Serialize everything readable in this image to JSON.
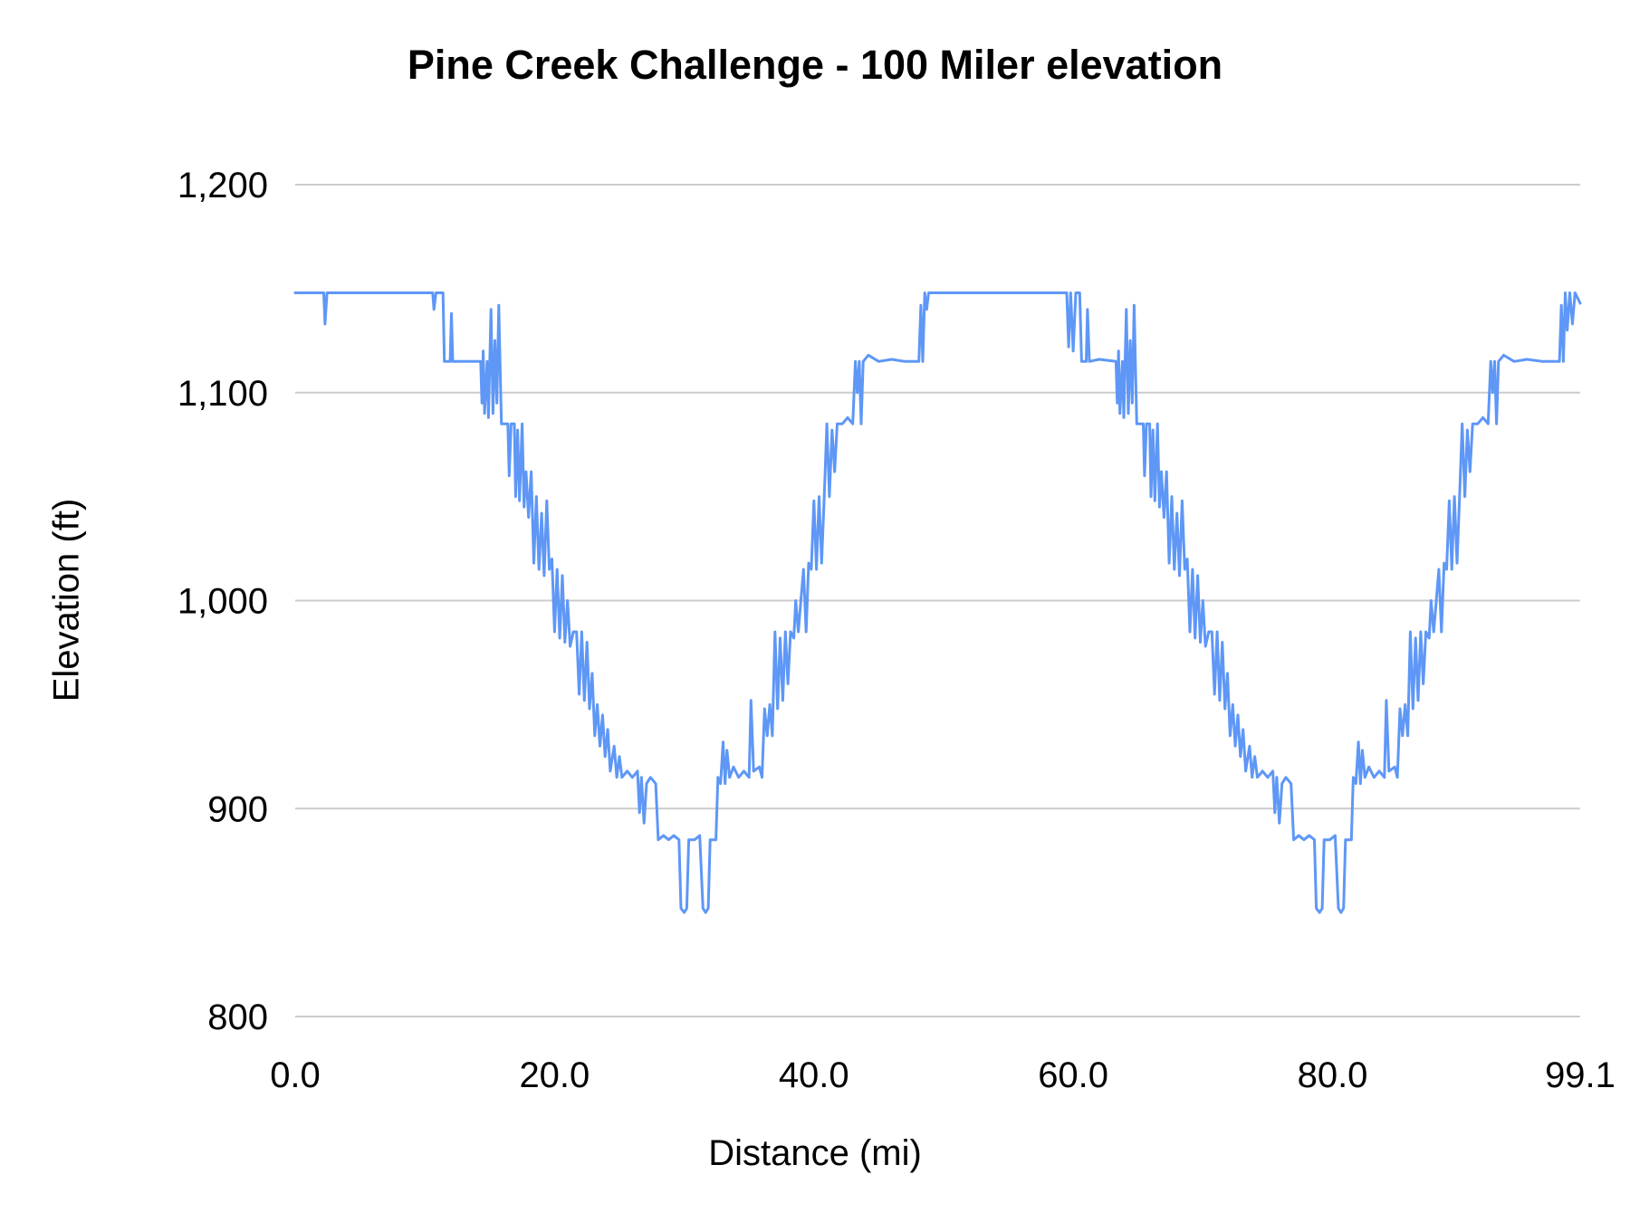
{
  "page": {
    "background": "#ffffff"
  },
  "chart_data": {
    "type": "line",
    "title": "Pine Creek Challenge - 100 Miler elevation",
    "xlabel": "Distance (mi)",
    "ylabel": "Elevation (ft)",
    "xlim": [
      0,
      99.1
    ],
    "ylim": [
      800,
      1200
    ],
    "grid": "horizontal",
    "legend": "none",
    "gridline_color": "#cccccc",
    "text_color": "#000000",
    "x_ticks": [
      {
        "v": 0,
        "label": "0.0"
      },
      {
        "v": 20,
        "label": "20.0"
      },
      {
        "v": 40,
        "label": "40.0"
      },
      {
        "v": 60,
        "label": "60.0"
      },
      {
        "v": 80,
        "label": "80.0"
      },
      {
        "v": 99.1,
        "label": "99.1"
      }
    ],
    "y_ticks": [
      {
        "v": 800,
        "label": "800"
      },
      {
        "v": 900,
        "label": "900"
      },
      {
        "v": 1000,
        "label": "1,000"
      },
      {
        "v": 1100,
        "label": "1,100"
      },
      {
        "v": 1200,
        "label": "1,200"
      }
    ],
    "series": [
      {
        "name": "Elevation",
        "color": "#5e97f6",
        "points": [
          [
            0,
            1148
          ],
          [
            2.2,
            1148
          ],
          [
            2.3,
            1133
          ],
          [
            2.45,
            1148
          ],
          [
            10.6,
            1148
          ],
          [
            10.7,
            1140
          ],
          [
            10.85,
            1148
          ],
          [
            11.4,
            1148
          ],
          [
            11.5,
            1115
          ],
          [
            11.95,
            1115
          ],
          [
            12.05,
            1138
          ],
          [
            12.15,
            1115
          ],
          [
            14.3,
            1115
          ],
          [
            14.4,
            1095
          ],
          [
            14.5,
            1120
          ],
          [
            14.6,
            1090
          ],
          [
            14.8,
            1115
          ],
          [
            14.9,
            1088
          ],
          [
            15.1,
            1140
          ],
          [
            15.25,
            1090
          ],
          [
            15.4,
            1125
          ],
          [
            15.55,
            1095
          ],
          [
            15.7,
            1142
          ],
          [
            15.9,
            1085
          ],
          [
            16.4,
            1085
          ],
          [
            16.5,
            1060
          ],
          [
            16.65,
            1085
          ],
          [
            16.9,
            1085
          ],
          [
            17,
            1050
          ],
          [
            17.15,
            1082
          ],
          [
            17.3,
            1048
          ],
          [
            17.5,
            1085
          ],
          [
            17.65,
            1045
          ],
          [
            17.8,
            1062
          ],
          [
            18,
            1040
          ],
          [
            18.2,
            1062
          ],
          [
            18.4,
            1018
          ],
          [
            18.6,
            1050
          ],
          [
            18.8,
            1015
          ],
          [
            19,
            1042
          ],
          [
            19.2,
            1012
          ],
          [
            19.4,
            1048
          ],
          [
            19.6,
            1015
          ],
          [
            19.8,
            1020
          ],
          [
            20,
            985
          ],
          [
            20.2,
            1015
          ],
          [
            20.4,
            982
          ],
          [
            20.6,
            1012
          ],
          [
            20.8,
            980
          ],
          [
            21,
            1000
          ],
          [
            21.2,
            978
          ],
          [
            21.45,
            985
          ],
          [
            21.7,
            985
          ],
          [
            21.9,
            955
          ],
          [
            22.1,
            985
          ],
          [
            22.3,
            952
          ],
          [
            22.5,
            980
          ],
          [
            22.7,
            948
          ],
          [
            22.9,
            965
          ],
          [
            23.1,
            935
          ],
          [
            23.3,
            950
          ],
          [
            23.5,
            930
          ],
          [
            23.7,
            945
          ],
          [
            23.9,
            925
          ],
          [
            24.1,
            938
          ],
          [
            24.3,
            918
          ],
          [
            24.6,
            930
          ],
          [
            24.8,
            915
          ],
          [
            25,
            925
          ],
          [
            25.2,
            915
          ],
          [
            25.6,
            918
          ],
          [
            26,
            915
          ],
          [
            26.4,
            918
          ],
          [
            26.55,
            898
          ],
          [
            26.7,
            915
          ],
          [
            26.9,
            893
          ],
          [
            27.1,
            912
          ],
          [
            27.4,
            915
          ],
          [
            27.8,
            912
          ],
          [
            28,
            885
          ],
          [
            28.4,
            887
          ],
          [
            28.8,
            885
          ],
          [
            29.2,
            887
          ],
          [
            29.6,
            885
          ],
          [
            29.75,
            852
          ],
          [
            30,
            850
          ],
          [
            30.2,
            852
          ],
          [
            30.35,
            885
          ],
          [
            30.8,
            885
          ],
          [
            31.2,
            887
          ],
          [
            31.45,
            852
          ],
          [
            31.65,
            850
          ],
          [
            31.85,
            852
          ],
          [
            32,
            885
          ],
          [
            32.45,
            885
          ],
          [
            32.6,
            915
          ],
          [
            32.8,
            912
          ],
          [
            33,
            932
          ],
          [
            33.15,
            912
          ],
          [
            33.3,
            928
          ],
          [
            33.5,
            915
          ],
          [
            33.8,
            920
          ],
          [
            34.2,
            915
          ],
          [
            34.6,
            918
          ],
          [
            35,
            915
          ],
          [
            35.15,
            952
          ],
          [
            35.35,
            918
          ],
          [
            35.8,
            920
          ],
          [
            36,
            915
          ],
          [
            36.2,
            948
          ],
          [
            36.4,
            935
          ],
          [
            36.6,
            950
          ],
          [
            36.8,
            935
          ],
          [
            37,
            985
          ],
          [
            37.2,
            948
          ],
          [
            37.4,
            982
          ],
          [
            37.6,
            952
          ],
          [
            37.8,
            985
          ],
          [
            38,
            960
          ],
          [
            38.2,
            985
          ],
          [
            38.45,
            982
          ],
          [
            38.6,
            1000
          ],
          [
            38.8,
            985
          ],
          [
            39,
            1000
          ],
          [
            39.2,
            1015
          ],
          [
            39.4,
            985
          ],
          [
            39.6,
            1018
          ],
          [
            39.8,
            1015
          ],
          [
            40,
            1048
          ],
          [
            40.2,
            1015
          ],
          [
            40.4,
            1050
          ],
          [
            40.6,
            1018
          ],
          [
            40.8,
            1050
          ],
          [
            41,
            1085
          ],
          [
            41.2,
            1050
          ],
          [
            41.4,
            1082
          ],
          [
            41.6,
            1062
          ],
          [
            41.8,
            1085
          ],
          [
            42.2,
            1085
          ],
          [
            42.6,
            1088
          ],
          [
            43,
            1085
          ],
          [
            43.2,
            1115
          ],
          [
            43.35,
            1100
          ],
          [
            43.5,
            1115
          ],
          [
            43.65,
            1085
          ],
          [
            43.8,
            1115
          ],
          [
            44.2,
            1118
          ],
          [
            45,
            1115
          ],
          [
            46,
            1116
          ],
          [
            47,
            1115
          ],
          [
            48.1,
            1115
          ],
          [
            48.25,
            1142
          ],
          [
            48.4,
            1115
          ],
          [
            48.55,
            1148
          ],
          [
            48.7,
            1140
          ],
          [
            48.85,
            1148
          ],
          [
            49.4,
            1148
          ],
          [
            55,
            1148
          ],
          [
            59.5,
            1148
          ],
          [
            59.65,
            1122
          ],
          [
            59.8,
            1148
          ],
          [
            60,
            1120
          ],
          [
            60.2,
            1148
          ],
          [
            60.5,
            1148
          ],
          [
            60.65,
            1115
          ],
          [
            61,
            1115
          ],
          [
            61.1,
            1140
          ],
          [
            61.25,
            1115
          ],
          [
            62,
            1116
          ],
          [
            63.3,
            1115
          ],
          [
            63.4,
            1095
          ],
          [
            63.5,
            1120
          ],
          [
            63.6,
            1090
          ],
          [
            63.8,
            1115
          ],
          [
            63.9,
            1088
          ],
          [
            64.1,
            1140
          ],
          [
            64.25,
            1090
          ],
          [
            64.4,
            1125
          ],
          [
            64.55,
            1095
          ],
          [
            64.7,
            1142
          ],
          [
            64.9,
            1085
          ],
          [
            65.4,
            1085
          ],
          [
            65.5,
            1060
          ],
          [
            65.65,
            1085
          ],
          [
            65.9,
            1085
          ],
          [
            66,
            1050
          ],
          [
            66.15,
            1082
          ],
          [
            66.3,
            1048
          ],
          [
            66.5,
            1085
          ],
          [
            66.65,
            1045
          ],
          [
            66.8,
            1062
          ],
          [
            67,
            1040
          ],
          [
            67.2,
            1062
          ],
          [
            67.4,
            1018
          ],
          [
            67.6,
            1050
          ],
          [
            67.8,
            1015
          ],
          [
            68,
            1042
          ],
          [
            68.2,
            1012
          ],
          [
            68.4,
            1048
          ],
          [
            68.6,
            1015
          ],
          [
            68.8,
            1020
          ],
          [
            69,
            985
          ],
          [
            69.2,
            1015
          ],
          [
            69.4,
            982
          ],
          [
            69.6,
            1012
          ],
          [
            69.8,
            980
          ],
          [
            70,
            1000
          ],
          [
            70.2,
            978
          ],
          [
            70.45,
            985
          ],
          [
            70.7,
            985
          ],
          [
            70.9,
            955
          ],
          [
            71.1,
            985
          ],
          [
            71.3,
            952
          ],
          [
            71.5,
            980
          ],
          [
            71.7,
            948
          ],
          [
            71.9,
            965
          ],
          [
            72.1,
            935
          ],
          [
            72.3,
            950
          ],
          [
            72.5,
            930
          ],
          [
            72.7,
            945
          ],
          [
            72.9,
            925
          ],
          [
            73.1,
            938
          ],
          [
            73.3,
            918
          ],
          [
            73.6,
            930
          ],
          [
            73.8,
            915
          ],
          [
            74,
            925
          ],
          [
            74.2,
            915
          ],
          [
            74.6,
            918
          ],
          [
            75,
            915
          ],
          [
            75.4,
            918
          ],
          [
            75.55,
            898
          ],
          [
            75.7,
            915
          ],
          [
            75.9,
            893
          ],
          [
            76.1,
            912
          ],
          [
            76.4,
            915
          ],
          [
            76.8,
            912
          ],
          [
            77,
            885
          ],
          [
            77.4,
            887
          ],
          [
            77.8,
            885
          ],
          [
            78.2,
            887
          ],
          [
            78.6,
            885
          ],
          [
            78.75,
            852
          ],
          [
            79,
            850
          ],
          [
            79.2,
            852
          ],
          [
            79.35,
            885
          ],
          [
            79.8,
            885
          ],
          [
            80.2,
            887
          ],
          [
            80.45,
            852
          ],
          [
            80.65,
            850
          ],
          [
            80.85,
            852
          ],
          [
            81,
            885
          ],
          [
            81.45,
            885
          ],
          [
            81.6,
            915
          ],
          [
            81.8,
            912
          ],
          [
            82,
            932
          ],
          [
            82.15,
            912
          ],
          [
            82.3,
            928
          ],
          [
            82.5,
            915
          ],
          [
            82.8,
            920
          ],
          [
            83.2,
            915
          ],
          [
            83.6,
            918
          ],
          [
            84,
            915
          ],
          [
            84.15,
            952
          ],
          [
            84.35,
            918
          ],
          [
            84.8,
            920
          ],
          [
            85,
            915
          ],
          [
            85.2,
            948
          ],
          [
            85.4,
            935
          ],
          [
            85.6,
            950
          ],
          [
            85.8,
            935
          ],
          [
            86,
            985
          ],
          [
            86.2,
            948
          ],
          [
            86.4,
            982
          ],
          [
            86.6,
            952
          ],
          [
            86.8,
            985
          ],
          [
            87,
            960
          ],
          [
            87.2,
            985
          ],
          [
            87.45,
            982
          ],
          [
            87.6,
            1000
          ],
          [
            87.8,
            985
          ],
          [
            88,
            1000
          ],
          [
            88.2,
            1015
          ],
          [
            88.4,
            985
          ],
          [
            88.6,
            1018
          ],
          [
            88.8,
            1015
          ],
          [
            89,
            1048
          ],
          [
            89.2,
            1015
          ],
          [
            89.4,
            1050
          ],
          [
            89.6,
            1018
          ],
          [
            89.8,
            1050
          ],
          [
            90,
            1085
          ],
          [
            90.2,
            1050
          ],
          [
            90.4,
            1082
          ],
          [
            90.6,
            1062
          ],
          [
            90.8,
            1085
          ],
          [
            91.2,
            1085
          ],
          [
            91.6,
            1088
          ],
          [
            92,
            1085
          ],
          [
            92.2,
            1115
          ],
          [
            92.35,
            1100
          ],
          [
            92.5,
            1115
          ],
          [
            92.65,
            1085
          ],
          [
            92.8,
            1115
          ],
          [
            93.2,
            1118
          ],
          [
            94,
            1115
          ],
          [
            95,
            1116
          ],
          [
            96.2,
            1115
          ],
          [
            97.5,
            1115
          ],
          [
            97.65,
            1142
          ],
          [
            97.8,
            1115
          ],
          [
            97.95,
            1148
          ],
          [
            98.1,
            1130
          ],
          [
            98.3,
            1148
          ],
          [
            98.5,
            1133
          ],
          [
            98.7,
            1148
          ],
          [
            99.1,
            1143
          ]
        ]
      }
    ]
  }
}
